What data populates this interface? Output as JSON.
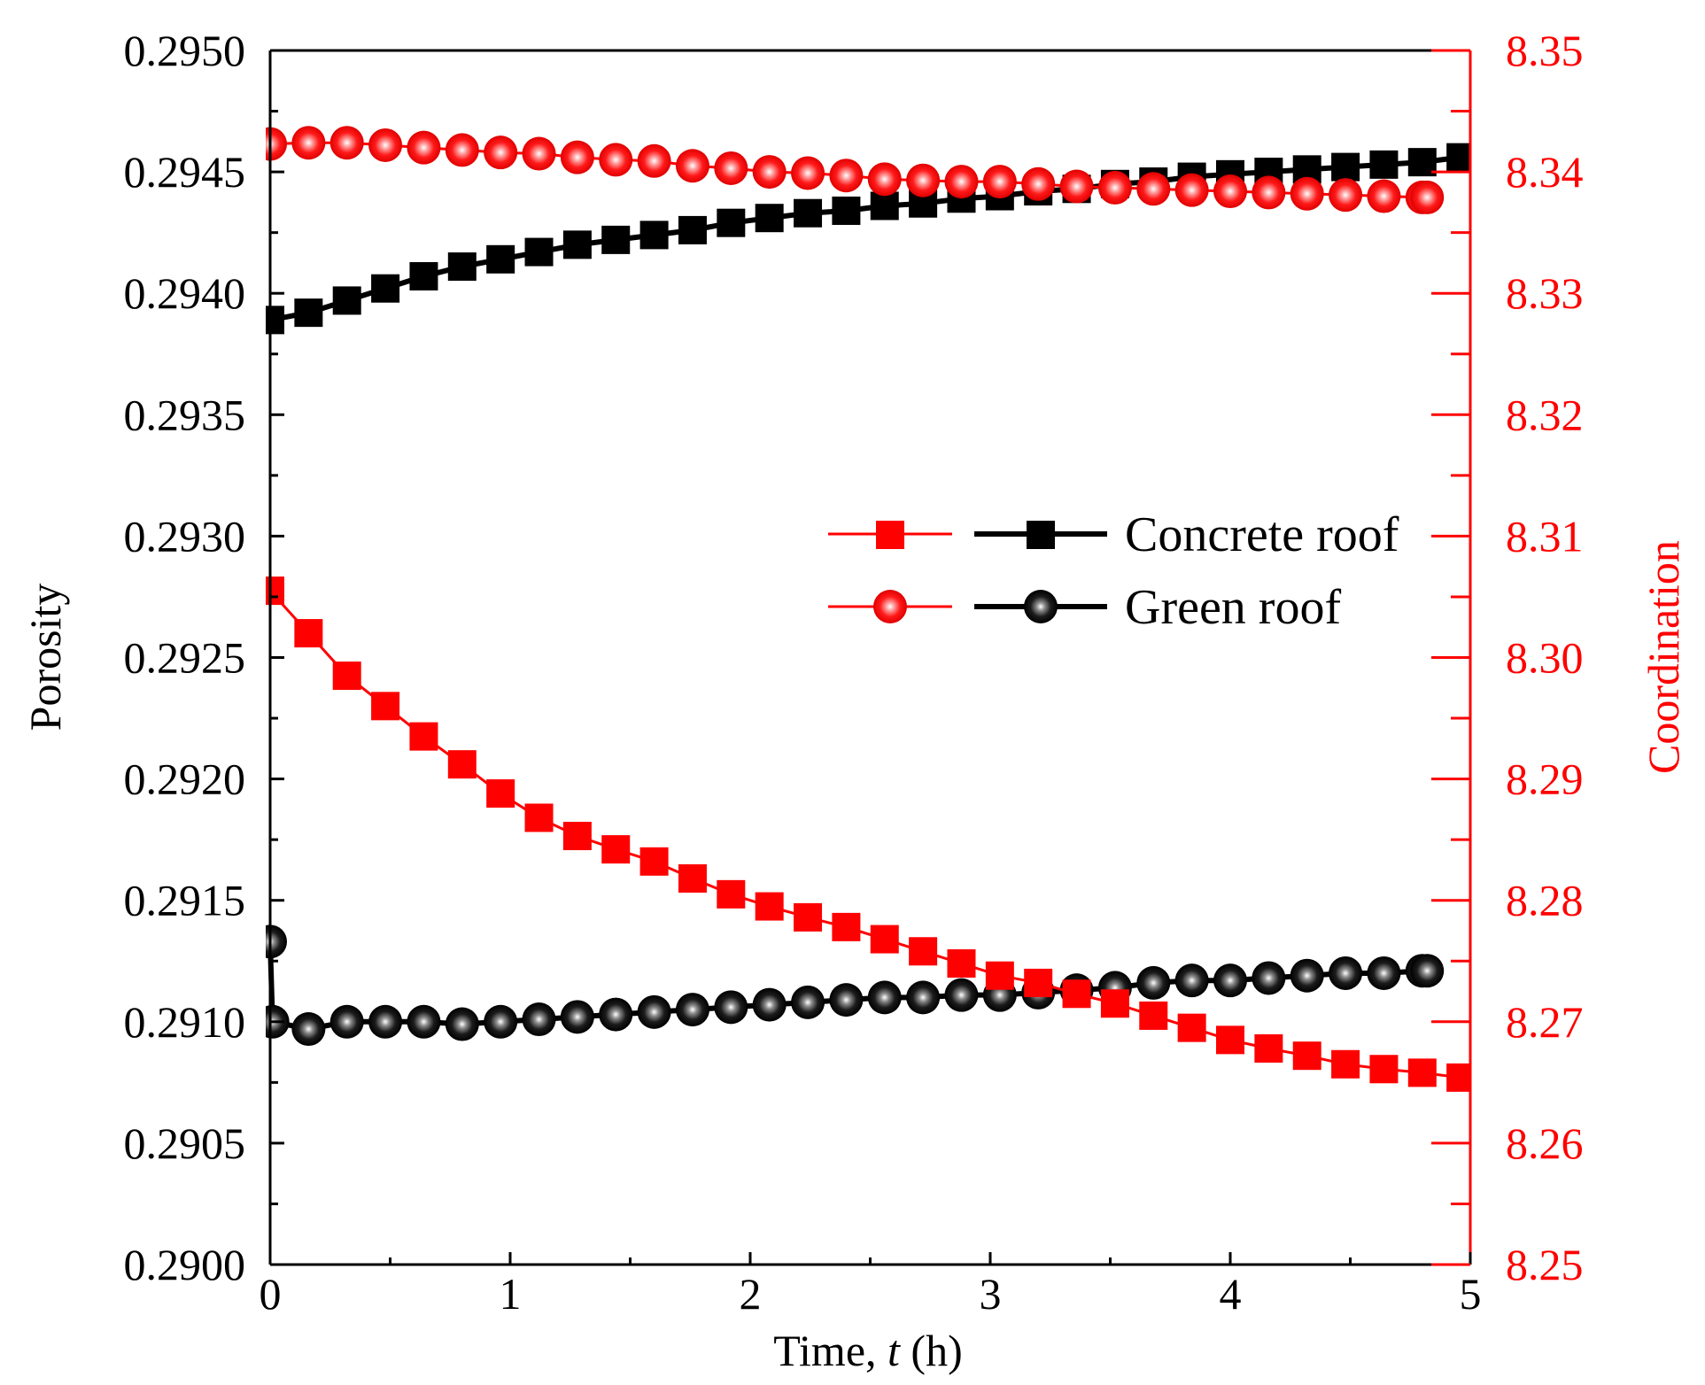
{
  "chart_data": {
    "type": "line",
    "title": "",
    "xlabel_prefix": "Time, ",
    "xlabel_var": "t",
    "xlabel_suffix": " (h)",
    "ylabel_left": "Porosity",
    "ylabel_right": "Coordination",
    "xlim": [
      0,
      5
    ],
    "ylim_left": [
      0.29,
      0.295
    ],
    "ylim_right": [
      8.25,
      8.35
    ],
    "x_ticks": [
      "0",
      "1",
      "2",
      "3",
      "4",
      "5"
    ],
    "y_left_ticks": [
      "0.2900",
      "0.2905",
      "0.2910",
      "0.2915",
      "0.2920",
      "0.2925",
      "0.2930",
      "0.2935",
      "0.2940",
      "0.2945",
      "0.2950"
    ],
    "y_right_ticks": [
      "8.25",
      "8.26",
      "8.27",
      "8.28",
      "8.29",
      "8.30",
      "8.31",
      "8.32",
      "8.33",
      "8.34",
      "8.35"
    ],
    "colors": {
      "porosity": "#000000",
      "coordination": "#ff0000"
    },
    "legend": {
      "position": "center-right",
      "entries": [
        "Concrete roof",
        "Green roof"
      ]
    },
    "series": [
      {
        "name": "Concrete roof",
        "quantity": "Porosity",
        "axis": "left",
        "marker": "square",
        "x": [
          0,
          0.16,
          0.32,
          0.48,
          0.64,
          0.8,
          0.96,
          1.12,
          1.28,
          1.44,
          1.6,
          1.76,
          1.92,
          2.08,
          2.24,
          2.4,
          2.56,
          2.72,
          2.88,
          3.04,
          3.2,
          3.36,
          3.52,
          3.68,
          3.84,
          4.0,
          4.16,
          4.32,
          4.48,
          4.64,
          4.8,
          4.96
        ],
        "values": [
          0.29389,
          0.29392,
          0.29397,
          0.29402,
          0.29407,
          0.29411,
          0.29414,
          0.29417,
          0.2942,
          0.29422,
          0.29424,
          0.29426,
          0.29429,
          0.29431,
          0.29433,
          0.29434,
          0.29436,
          0.29437,
          0.29439,
          0.2944,
          0.29442,
          0.29443,
          0.29445,
          0.29446,
          0.29448,
          0.29449,
          0.2945,
          0.29451,
          0.29452,
          0.29453,
          0.29454,
          0.29456
        ]
      },
      {
        "name": "Green roof",
        "quantity": "Porosity",
        "axis": "left",
        "marker": "sphere",
        "x": [
          0,
          0.01,
          0.16,
          0.32,
          0.48,
          0.64,
          0.8,
          0.96,
          1.12,
          1.28,
          1.44,
          1.6,
          1.76,
          1.92,
          2.08,
          2.24,
          2.4,
          2.56,
          2.72,
          2.88,
          3.04,
          3.2,
          3.36,
          3.52,
          3.68,
          3.84,
          4.0,
          4.16,
          4.32,
          4.48,
          4.64,
          4.8,
          4.82
        ],
        "values": [
          0.29133,
          0.291,
          0.29097,
          0.291,
          0.291,
          0.291,
          0.29099,
          0.291,
          0.29101,
          0.29102,
          0.29103,
          0.29104,
          0.29105,
          0.29106,
          0.29107,
          0.29108,
          0.29109,
          0.2911,
          0.2911,
          0.29111,
          0.29111,
          0.29112,
          0.29113,
          0.29114,
          0.29116,
          0.29117,
          0.29117,
          0.29118,
          0.29119,
          0.2912,
          0.2912,
          0.29121,
          0.29121
        ]
      },
      {
        "name": "Concrete roof",
        "quantity": "Coordination",
        "axis": "right",
        "marker": "square",
        "x": [
          0,
          0.16,
          0.32,
          0.48,
          0.64,
          0.8,
          0.96,
          1.12,
          1.28,
          1.44,
          1.6,
          1.76,
          1.92,
          2.08,
          2.24,
          2.4,
          2.56,
          2.72,
          2.88,
          3.04,
          3.2,
          3.36,
          3.52,
          3.68,
          3.84,
          4.0,
          4.16,
          4.32,
          4.48,
          4.64,
          4.8,
          4.96
        ],
        "values": [
          8.3055,
          8.302,
          8.2985,
          8.296,
          8.2935,
          8.2912,
          8.2888,
          8.2868,
          8.2853,
          8.2842,
          8.2832,
          8.2818,
          8.2805,
          8.2795,
          8.2786,
          8.2778,
          8.2768,
          8.2758,
          8.2748,
          8.2738,
          8.2732,
          8.2723,
          8.2715,
          8.2705,
          8.2695,
          8.2685,
          8.2678,
          8.2672,
          8.2665,
          8.2661,
          8.2658,
          8.2654
        ]
      },
      {
        "name": "Green roof",
        "quantity": "Coordination",
        "axis": "right",
        "marker": "sphere",
        "x": [
          0,
          0.16,
          0.32,
          0.48,
          0.64,
          0.8,
          0.96,
          1.12,
          1.28,
          1.44,
          1.6,
          1.76,
          1.92,
          2.08,
          2.24,
          2.4,
          2.56,
          2.72,
          2.88,
          3.04,
          3.2,
          3.36,
          3.52,
          3.68,
          3.84,
          4.0,
          4.16,
          4.32,
          4.48,
          4.64,
          4.8,
          4.82
        ],
        "values": [
          8.3423,
          8.3424,
          8.3424,
          8.3422,
          8.342,
          8.3418,
          8.3416,
          8.3415,
          8.3412,
          8.341,
          8.3409,
          8.3405,
          8.3403,
          8.34,
          8.3399,
          8.3397,
          8.3394,
          8.3393,
          8.3392,
          8.3392,
          8.339,
          8.3388,
          8.3387,
          8.3386,
          8.3385,
          8.3384,
          8.3383,
          8.3382,
          8.3381,
          8.338,
          8.3379,
          8.3379
        ]
      }
    ]
  }
}
